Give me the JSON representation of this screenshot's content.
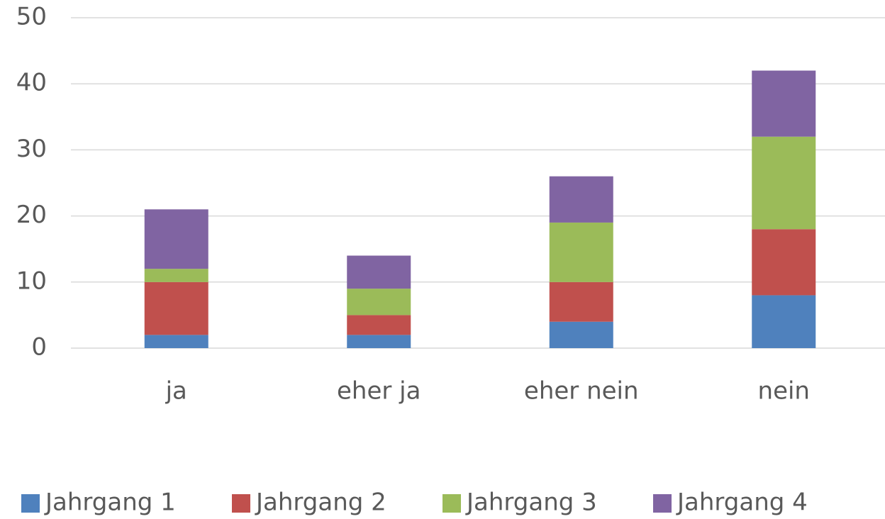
{
  "chart_data": {
    "type": "bar",
    "stacked": true,
    "categories": [
      "ja",
      "eher ja",
      "eher nein",
      "nein"
    ],
    "series": [
      {
        "name": "Jahrgang 1",
        "color": "#4f81bd",
        "values": [
          2,
          2,
          4,
          8
        ]
      },
      {
        "name": "Jahrgang 2",
        "color": "#c0504d",
        "values": [
          8,
          3,
          6,
          10
        ]
      },
      {
        "name": "Jahrgang 3",
        "color": "#9bbb59",
        "values": [
          2,
          4,
          9,
          14
        ]
      },
      {
        "name": "Jahrgang 4",
        "color": "#8064a2",
        "values": [
          9,
          5,
          7,
          10
        ]
      }
    ],
    "ylim": [
      0,
      50
    ],
    "yticks": [
      0,
      10,
      20,
      30,
      40,
      50
    ],
    "grid": true,
    "legend": "bottom"
  }
}
